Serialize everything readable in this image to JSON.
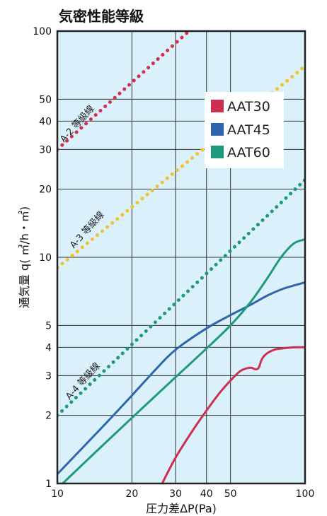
{
  "chart_data": {
    "type": "line",
    "title": "気密性能等級",
    "xlabel": "圧力差ΔP(Pa)",
    "ylabel": "通気量 q( ㎥/h・㎡)",
    "x_scale": "log",
    "y_scale": "log",
    "xlim": [
      10,
      100
    ],
    "ylim": [
      1,
      100
    ],
    "x_ticks": [
      10,
      20,
      30,
      40,
      50,
      100
    ],
    "y_ticks": [
      1,
      2,
      3,
      4,
      5,
      10,
      20,
      30,
      40,
      50,
      100
    ],
    "x_tick_labels": [
      "10",
      "20",
      "30",
      "40",
      "50",
      "100"
    ],
    "y_tick_labels": [
      "1",
      "2",
      "3",
      "4",
      "5",
      "10",
      "20",
      "30",
      "40",
      "50",
      "100"
    ],
    "background_color": "#daf0fa",
    "grid": true,
    "legend_position": "top-right",
    "series": [
      {
        "name": "AAT30",
        "color": "#cc2f50",
        "style": "solid",
        "x": [
          26.5,
          30,
          35,
          40,
          45,
          50,
          55,
          60,
          63,
          65,
          67,
          70,
          75,
          80,
          90,
          100
        ],
        "y": [
          1.0,
          1.3,
          1.7,
          2.1,
          2.5,
          2.85,
          3.15,
          3.25,
          3.2,
          3.25,
          3.55,
          3.75,
          3.9,
          3.95,
          4.0,
          4.0
        ]
      },
      {
        "name": "AAT45",
        "color": "#2f65ad",
        "style": "solid",
        "x": [
          10,
          15,
          20,
          25,
          30,
          40,
          50,
          60,
          70,
          80,
          90,
          100
        ],
        "y": [
          1.1,
          1.75,
          2.45,
          3.2,
          3.9,
          4.85,
          5.55,
          6.15,
          6.75,
          7.2,
          7.5,
          7.75
        ]
      },
      {
        "name": "AAT60",
        "color": "#1e9a7a",
        "style": "solid",
        "x": [
          10,
          15,
          20,
          25,
          30,
          40,
          50,
          60,
          70,
          80,
          90,
          100
        ],
        "y": [
          0.95,
          1.45,
          1.95,
          2.45,
          2.95,
          3.95,
          5.0,
          6.3,
          8.0,
          10.0,
          11.5,
          12.0
        ]
      },
      {
        "name": "A-2 等級線",
        "color": "#d0304e",
        "style": "dotted",
        "x": [
          10,
          34
        ],
        "y": [
          30,
          100
        ]
      },
      {
        "name": "A-3 等級線",
        "color": "#f1c232",
        "style": "dotted",
        "x": [
          10,
          100
        ],
        "y": [
          9,
          70
        ]
      },
      {
        "name": "A-4 等級線",
        "color": "#1e9a7a",
        "style": "dotted",
        "x": [
          10,
          100
        ],
        "y": [
          2,
          22
        ]
      }
    ],
    "legend": [
      {
        "label": "AAT30",
        "color": "#cc2f50"
      },
      {
        "label": "AAT45",
        "color": "#2f65ad"
      },
      {
        "label": "AAT60",
        "color": "#1e9a7a"
      }
    ]
  }
}
